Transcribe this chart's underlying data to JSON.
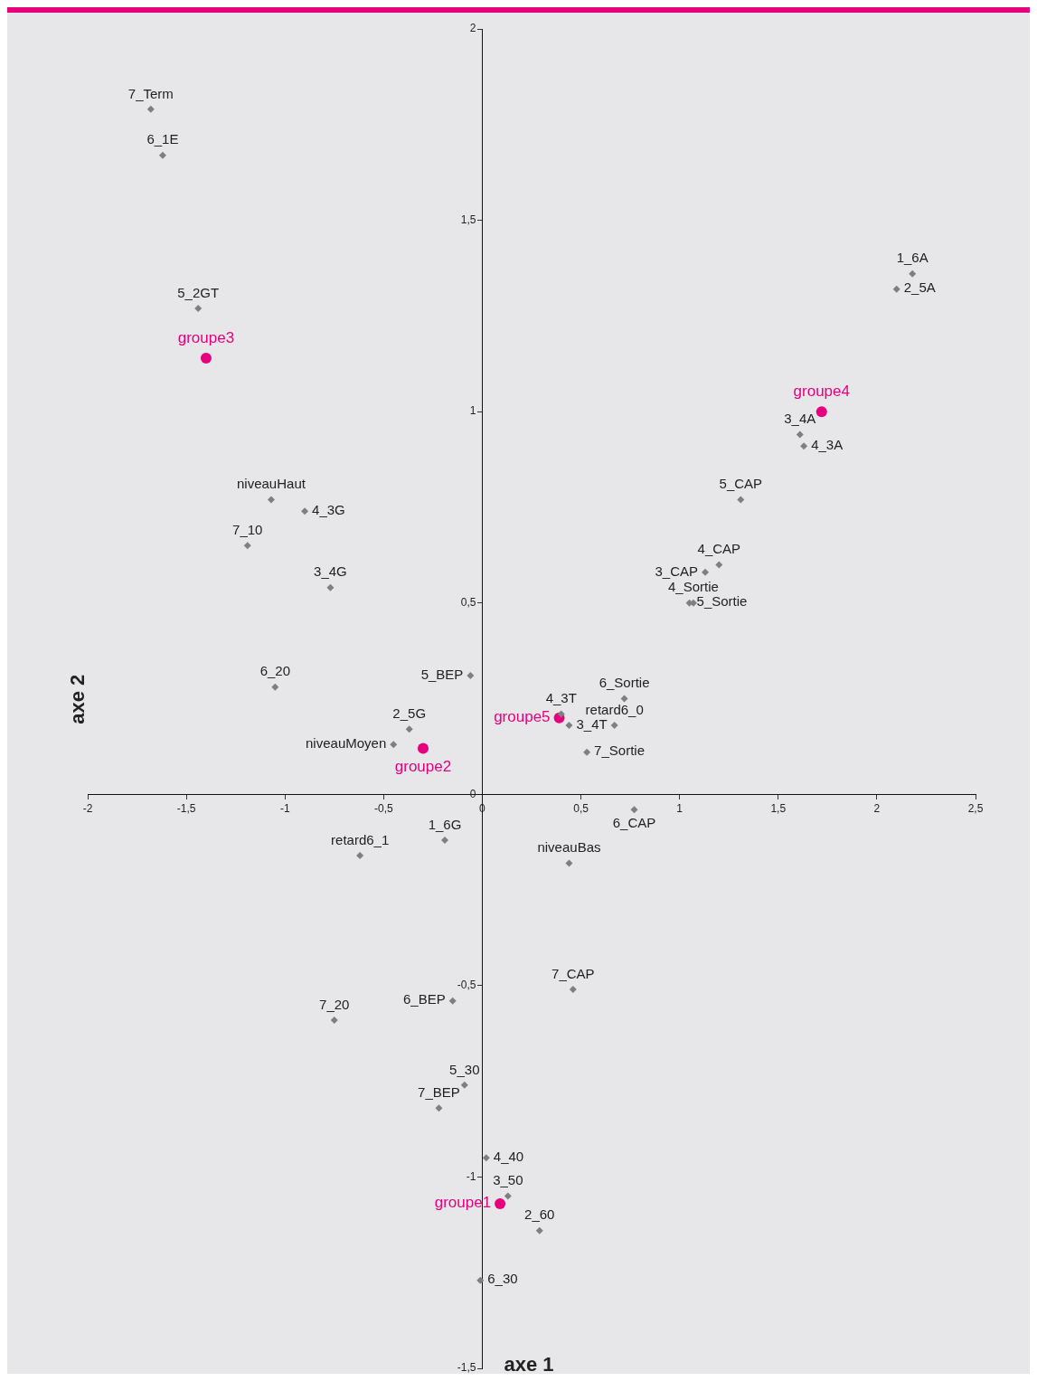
{
  "chart_data": {
    "type": "scatter",
    "xlabel": "axe 1",
    "ylabel": "axe 2",
    "xlim": [
      -2,
      2.5
    ],
    "ylim": [
      -1.5,
      2
    ],
    "xticks": [
      -2,
      {
        "value": -1.5,
        "label": "-1,5"
      },
      -1,
      {
        "value": -0.5,
        "label": "-0,5"
      },
      0,
      {
        "value": 0.5,
        "label": "0,5"
      },
      1,
      {
        "value": 1.5,
        "label": "1,5"
      },
      2,
      {
        "value": 2.5,
        "label": "2,5"
      }
    ],
    "yticks": [
      {
        "value": -1.5,
        "label": "-1,5"
      },
      -1,
      {
        "value": -0.5,
        "label": "-0,5"
      },
      0,
      {
        "value": 0.5,
        "label": "0,5"
      },
      1,
      {
        "value": 1.5,
        "label": "1,5"
      },
      2
    ],
    "grid": false,
    "legend": false,
    "series": [
      {
        "color": "#7f7f7f",
        "marker": "diamond",
        "x": [
          -1.68,
          -1.62,
          -1.44,
          2.18,
          2.1,
          1.61,
          1.63,
          1.31,
          -1.07,
          -0.9,
          -1.19,
          -0.77,
          1.2,
          1.13,
          1.07,
          1.05,
          -0.06,
          -1.05,
          0.72,
          0.4,
          0.44,
          0.67,
          -0.37,
          0.53,
          -0.45,
          0.77,
          -0.19,
          -0.62,
          0.44,
          0.46,
          -0.15,
          -0.75,
          -0.09,
          -0.22,
          0.02,
          0.13,
          0.29,
          -0.01
        ],
        "values": [
          1.79,
          1.67,
          1.27,
          1.36,
          1.32,
          0.94,
          0.91,
          0.77,
          0.77,
          0.74,
          0.65,
          0.54,
          0.6,
          0.58,
          0.5,
          0.5,
          0.31,
          0.28,
          0.25,
          0.21,
          0.18,
          0.18,
          0.17,
          0.11,
          0.13,
          -0.04,
          -0.12,
          -0.16,
          -0.18,
          -0.51,
          -0.54,
          -0.59,
          -0.76,
          -0.82,
          -0.95,
          -1.05,
          -1.14,
          -1.27
        ]
      },
      {
        "color": "#e6007e",
        "marker": "circle",
        "x": [
          -1.4,
          1.72,
          0.39,
          -0.3,
          0.09
        ],
        "values": [
          1.14,
          1.0,
          0.2,
          0.12,
          -1.07
        ]
      }
    ],
    "annotations": [
      {
        "text": "7_Term",
        "x": -1.68,
        "y": 1.79
      },
      {
        "text": "6_1E",
        "x": -1.62,
        "y": 1.67
      },
      {
        "text": "5_2GT",
        "x": -1.44,
        "y": 1.27
      },
      {
        "text": "1_6A",
        "x": 2.18,
        "y": 1.36
      },
      {
        "text": "2_5A",
        "x": 2.1,
        "y": 1.32
      },
      {
        "text": "3_4A",
        "x": 1.61,
        "y": 0.94
      },
      {
        "text": "4_3A",
        "x": 1.63,
        "y": 0.91
      },
      {
        "text": "5_CAP",
        "x": 1.31,
        "y": 0.77
      },
      {
        "text": "niveauHaut",
        "x": -1.07,
        "y": 0.77
      },
      {
        "text": "4_3G",
        "x": -0.9,
        "y": 0.74
      },
      {
        "text": "7_10",
        "x": -1.19,
        "y": 0.65
      },
      {
        "text": "3_4G",
        "x": -0.77,
        "y": 0.54
      },
      {
        "text": "4_CAP",
        "x": 1.2,
        "y": 0.6
      },
      {
        "text": "3_CAP",
        "x": 1.13,
        "y": 0.58
      },
      {
        "text": "4_Sortie",
        "x": 1.07,
        "y": 0.5
      },
      {
        "text": "5_Sortie",
        "x": 1.05,
        "y": 0.5
      },
      {
        "text": "5_BEP",
        "x": -0.06,
        "y": 0.31
      },
      {
        "text": "6_20",
        "x": -1.05,
        "y": 0.28
      },
      {
        "text": "6_Sortie",
        "x": 0.72,
        "y": 0.25
      },
      {
        "text": "4_3T",
        "x": 0.4,
        "y": 0.21
      },
      {
        "text": "3_4T",
        "x": 0.44,
        "y": 0.18
      },
      {
        "text": "retard6_0",
        "x": 0.67,
        "y": 0.18
      },
      {
        "text": "2_5G",
        "x": -0.37,
        "y": 0.17
      },
      {
        "text": "7_Sortie",
        "x": 0.53,
        "y": 0.11
      },
      {
        "text": "niveauMoyen",
        "x": -0.45,
        "y": 0.13
      },
      {
        "text": "6_CAP",
        "x": 0.77,
        "y": -0.04
      },
      {
        "text": "1_6G",
        "x": -0.19,
        "y": -0.12
      },
      {
        "text": "retard6_1",
        "x": -0.62,
        "y": -0.16
      },
      {
        "text": "niveauBas",
        "x": 0.44,
        "y": -0.18
      },
      {
        "text": "7_CAP",
        "x": 0.46,
        "y": -0.51
      },
      {
        "text": "6_BEP",
        "x": -0.15,
        "y": -0.54
      },
      {
        "text": "7_20",
        "x": -0.75,
        "y": -0.59
      },
      {
        "text": "5_30",
        "x": -0.09,
        "y": -0.76
      },
      {
        "text": "7_BEP",
        "x": -0.22,
        "y": -0.82
      },
      {
        "text": "4_40",
        "x": 0.02,
        "y": -0.95
      },
      {
        "text": "3_50",
        "x": 0.13,
        "y": -1.05
      },
      {
        "text": "2_60",
        "x": 0.29,
        "y": -1.14
      },
      {
        "text": "6_30",
        "x": -0.01,
        "y": -1.27
      },
      {
        "text": "groupe3",
        "x": -1.4,
        "y": 1.14
      },
      {
        "text": "groupe4",
        "x": 1.72,
        "y": 1.0
      },
      {
        "text": "groupe5",
        "x": 0.39,
        "y": 0.2
      },
      {
        "text": "groupe2",
        "x": -0.3,
        "y": 0.12
      },
      {
        "text": "groupe1",
        "x": 0.09,
        "y": -1.07
      }
    ]
  }
}
